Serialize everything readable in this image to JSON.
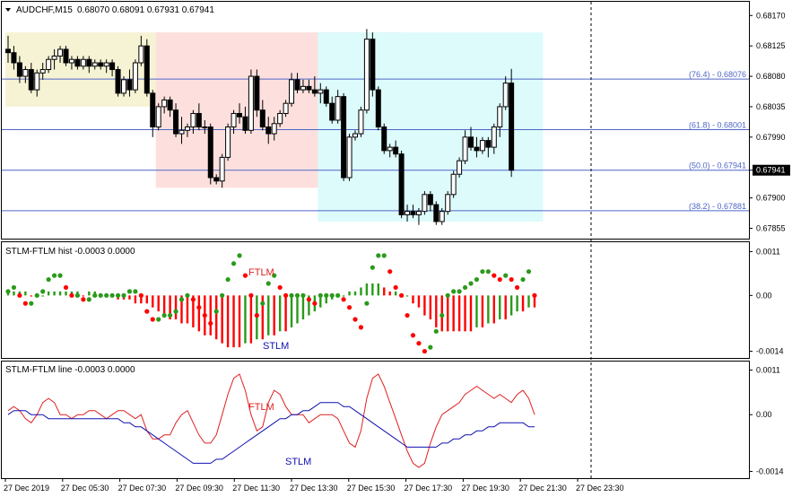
{
  "window": {
    "symbol_title": "AUDCHF,M15",
    "ohlc": "0.68070 0.68091 0.67931 0.67941",
    "colors": {
      "up": "#000000",
      "down": "#000000",
      "bg": "#ffffff",
      "grid_line": "#4f66c7"
    }
  },
  "chart_data": [
    {
      "type": "candlestick",
      "title": "AUDCHF,M15  0.68070 0.68091 0.67931 0.67941",
      "price_axis": {
        "ticks": [
          "0.68170",
          "0.68125",
          "0.68080",
          "0.68035",
          "0.67990",
          "0.67941",
          "0.67900",
          "0.67855"
        ],
        "range": [
          0.67845,
          0.68185
        ],
        "current": "0.67941"
      },
      "fib_levels": [
        {
          "label": "(76.4) - 0.68076",
          "value": 0.68076
        },
        {
          "label": "(61.8) - 0.68001",
          "value": 0.68001
        },
        {
          "label": "(50.0) - 0.67941",
          "value": 0.67941
        },
        {
          "label": "(38.2) - 0.67881",
          "value": 0.67881
        }
      ],
      "zones": [
        {
          "color": "#f6f3d5",
          "from_bar": 0,
          "to_bar": 30,
          "high": 0.68145,
          "low": 0.68035
        },
        {
          "color": "#fde0dd",
          "from_bar": 26,
          "to_bar": 54,
          "high": 0.68145,
          "low": 0.67915
        },
        {
          "color": "#dfe0dc",
          "from_bar": 54,
          "to_bar": 68,
          "high": 0.68145,
          "low": 0.67915
        },
        {
          "color": "#ddfbfb",
          "from_bar": 54,
          "to_bar": 92,
          "high": 0.68145,
          "low": 0.67865
        }
      ],
      "candles": [
        [
          0.6812,
          0.6814,
          0.681,
          0.68115
        ],
        [
          0.68115,
          0.68125,
          0.6809,
          0.681
        ],
        [
          0.681,
          0.6811,
          0.6807,
          0.6808
        ],
        [
          0.6808,
          0.68095,
          0.6807,
          0.6809
        ],
        [
          0.6809,
          0.681,
          0.68055,
          0.6806
        ],
        [
          0.6806,
          0.6809,
          0.6805,
          0.68085
        ],
        [
          0.68085,
          0.681,
          0.68075,
          0.6809
        ],
        [
          0.6809,
          0.6811,
          0.68085,
          0.68105
        ],
        [
          0.68105,
          0.6812,
          0.6809,
          0.6811
        ],
        [
          0.6811,
          0.68125,
          0.681,
          0.6812
        ],
        [
          0.6812,
          0.68125,
          0.68095,
          0.681
        ],
        [
          0.681,
          0.6811,
          0.6809,
          0.68105
        ],
        [
          0.68105,
          0.6811,
          0.6809,
          0.68095
        ],
        [
          0.68095,
          0.6811,
          0.6809,
          0.68105
        ],
        [
          0.68105,
          0.6811,
          0.68085,
          0.68095
        ],
        [
          0.68095,
          0.68105,
          0.6809,
          0.681
        ],
        [
          0.681,
          0.68105,
          0.6809,
          0.68095
        ],
        [
          0.68095,
          0.68105,
          0.68085,
          0.681
        ],
        [
          0.681,
          0.68105,
          0.6808,
          0.6809
        ],
        [
          0.6809,
          0.68095,
          0.6805,
          0.68055
        ],
        [
          0.68055,
          0.6808,
          0.6805,
          0.68075
        ],
        [
          0.68075,
          0.6809,
          0.6805,
          0.6806
        ],
        [
          0.6806,
          0.68105,
          0.68055,
          0.681
        ],
        [
          0.681,
          0.6814,
          0.68095,
          0.68125
        ],
        [
          0.68125,
          0.68135,
          0.6805,
          0.68055
        ],
        [
          0.68055,
          0.6806,
          0.6799,
          0.68005
        ],
        [
          0.68005,
          0.6804,
          0.68,
          0.68035
        ],
        [
          0.68035,
          0.6805,
          0.68025,
          0.68045
        ],
        [
          0.68045,
          0.6805,
          0.6802,
          0.6803
        ],
        [
          0.6803,
          0.6804,
          0.6799,
          0.67995
        ],
        [
          0.67995,
          0.6802,
          0.6798,
          0.68
        ],
        [
          0.68,
          0.6801,
          0.6799,
          0.68005
        ],
        [
          0.68005,
          0.6803,
          0.67995,
          0.68025
        ],
        [
          0.68025,
          0.6804,
          0.68,
          0.68005
        ],
        [
          0.68005,
          0.68015,
          0.67995,
          0.68005
        ],
        [
          0.68005,
          0.6801,
          0.6792,
          0.6793
        ],
        [
          0.6793,
          0.67935,
          0.6792,
          0.67925
        ],
        [
          0.67925,
          0.67965,
          0.67915,
          0.6796
        ],
        [
          0.6796,
          0.6801,
          0.67955,
          0.68005
        ],
        [
          0.68005,
          0.6803,
          0.67995,
          0.68025
        ],
        [
          0.68025,
          0.6804,
          0.6801,
          0.6802
        ],
        [
          0.6802,
          0.68035,
          0.67995,
          0.68
        ],
        [
          0.68,
          0.6809,
          0.67995,
          0.6808
        ],
        [
          0.6808,
          0.6809,
          0.6802,
          0.6803
        ],
        [
          0.6803,
          0.68045,
          0.68,
          0.68005
        ],
        [
          0.68005,
          0.6802,
          0.6798,
          0.67995
        ],
        [
          0.67995,
          0.6802,
          0.67985,
          0.6801
        ],
        [
          0.6801,
          0.6803,
          0.68005,
          0.68025
        ],
        [
          0.68025,
          0.68045,
          0.6802,
          0.6804
        ],
        [
          0.6804,
          0.68085,
          0.68035,
          0.68075
        ],
        [
          0.68075,
          0.68085,
          0.68055,
          0.6806
        ],
        [
          0.6806,
          0.68075,
          0.68055,
          0.68065
        ],
        [
          0.68065,
          0.68075,
          0.68055,
          0.6806
        ],
        [
          0.6806,
          0.6808,
          0.6805,
          0.68055
        ],
        [
          0.68055,
          0.6807,
          0.6804,
          0.6806
        ],
        [
          0.6806,
          0.68065,
          0.68035,
          0.6804
        ],
        [
          0.6804,
          0.6805,
          0.6801,
          0.68015
        ],
        [
          0.68015,
          0.6806,
          0.6801,
          0.6805
        ],
        [
          0.6805,
          0.68055,
          0.67925,
          0.6793
        ],
        [
          0.6793,
          0.67995,
          0.67925,
          0.6799
        ],
        [
          0.6799,
          0.68,
          0.67985,
          0.67995
        ],
        [
          0.67995,
          0.68035,
          0.6799,
          0.6803
        ],
        [
          0.6803,
          0.6815,
          0.68025,
          0.68135
        ],
        [
          0.68135,
          0.68145,
          0.6805,
          0.6806
        ],
        [
          0.6806,
          0.68065,
          0.68,
          0.68005
        ],
        [
          0.68005,
          0.6801,
          0.67965,
          0.6797
        ],
        [
          0.6797,
          0.6798,
          0.6796,
          0.67975
        ],
        [
          0.67975,
          0.67985,
          0.6796,
          0.67965
        ],
        [
          0.67965,
          0.6797,
          0.6787,
          0.67875
        ],
        [
          0.67875,
          0.6789,
          0.67865,
          0.6788
        ],
        [
          0.6788,
          0.6789,
          0.6787,
          0.67875
        ],
        [
          0.67875,
          0.67885,
          0.6786,
          0.6788
        ],
        [
          0.6788,
          0.6791,
          0.67875,
          0.67905
        ],
        [
          0.67905,
          0.6791,
          0.6788,
          0.6789
        ],
        [
          0.6789,
          0.67895,
          0.6786,
          0.67865
        ],
        [
          0.67865,
          0.67885,
          0.6786,
          0.6788
        ],
        [
          0.6788,
          0.6791,
          0.67875,
          0.67905
        ],
        [
          0.67905,
          0.6794,
          0.679,
          0.67935
        ],
        [
          0.67935,
          0.6796,
          0.6793,
          0.67955
        ],
        [
          0.67955,
          0.68,
          0.6795,
          0.6799
        ],
        [
          0.6799,
          0.68005,
          0.6797,
          0.67975
        ],
        [
          0.67975,
          0.6799,
          0.6796,
          0.6797
        ],
        [
          0.6797,
          0.6799,
          0.67965,
          0.67985
        ],
        [
          0.67985,
          0.6799,
          0.6796,
          0.67975
        ],
        [
          0.67975,
          0.6801,
          0.67965,
          0.68005
        ],
        [
          0.68005,
          0.6804,
          0.6799,
          0.68035
        ],
        [
          0.68035,
          0.6808,
          0.6803,
          0.6807
        ],
        [
          0.6807,
          0.68091,
          0.67931,
          0.67941
        ]
      ]
    },
    {
      "type": "bar",
      "title": "STLM-FTLM hist -0.0003 0.0000",
      "annotations": [
        "FTLM",
        "STLM"
      ],
      "y_ticks": [
        "0.0011",
        "0.00",
        "-0.0014"
      ],
      "ylim": [
        -0.0015,
        0.0012
      ],
      "bars": [
        0.0001,
        0.0001,
        0.0001,
        0.0001,
        0.0,
        0.0,
        0.0,
        0.0001,
        0.0001,
        0.0001,
        0.0001,
        0.0001,
        0.0001,
        0.0,
        0.0001,
        0.0001,
        0.0,
        0.0,
        0.0,
        -0.0001,
        -0.0001,
        -0.0001,
        -0.0002,
        -0.0002,
        -0.0002,
        -0.0003,
        -0.0004,
        -0.0005,
        -0.0006,
        -0.0006,
        -0.0007,
        -0.0007,
        -0.0008,
        -0.0009,
        -0.001,
        -0.001,
        -0.0011,
        -0.0012,
        -0.0013,
        -0.0013,
        -0.0013,
        -0.0012,
        -0.0012,
        -0.0011,
        -0.0011,
        -0.001,
        -0.001,
        -0.0009,
        -0.0009,
        -0.0008,
        -0.0007,
        -0.0006,
        -0.0005,
        -0.0004,
        -0.0003,
        -0.0002,
        -0.0001,
        0.0,
        0.0,
        0.0001,
        0.0001,
        0.0002,
        0.0003,
        0.0003,
        0.0003,
        0.0002,
        0.0001,
        0.0001,
        0.0,
        0.0,
        -0.0002,
        -0.0003,
        -0.0005,
        -0.0006,
        -0.0008,
        -0.0009,
        -0.0009,
        -0.0009,
        -0.0009,
        -0.0009,
        -0.0009,
        -0.0008,
        -0.0008,
        -0.0007,
        -0.0007,
        -0.0006,
        -0.0006,
        -0.0005,
        -0.0004,
        -0.0004,
        -0.0003,
        -0.0003
      ],
      "colors": {
        "up": "#2a9a1a",
        "down": "#ff0000"
      },
      "ftlm_points": [
        0.0001,
        0.0002,
        0.0,
        -0.0002,
        -0.0002,
        0.0,
        0.0001,
        0.0004,
        0.0005,
        0.0005,
        0.0002,
        0.0,
        0.0,
        -0.0001,
        -0.0001,
        0.0,
        0.0,
        0.0,
        0.0,
        0.0,
        0.0,
        0.0001,
        0.0001,
        0.0,
        -0.0004,
        -0.0006,
        -0.0006,
        -0.0005,
        -0.0005,
        -0.0004,
        -0.0001,
        0.0,
        -0.0001,
        -0.0003,
        -0.0005,
        -0.0007,
        -0.0004,
        0.0,
        0.0004,
        0.0008,
        0.001,
        0.0005,
        0.0,
        -0.0005,
        -0.0002,
        0.0003,
        0.0005,
        0.0002,
        0.0,
        0.0,
        0.0,
        0.0,
        -0.0001,
        -0.0002,
        0.0,
        0.0,
        0.0,
        0.0,
        -0.0001,
        -0.0003,
        -0.0006,
        -0.0008,
        -0.0002,
        0.0007,
        0.001,
        0.001,
        0.0006,
        0.0002,
        0.0,
        -0.0005,
        -0.001,
        -0.0012,
        -0.0014,
        -0.0013,
        -0.0009,
        -0.0005,
        0.0,
        0.0001,
        0.0001,
        0.0002,
        0.0003,
        0.0004,
        0.0006,
        0.0006,
        0.0005,
        0.0004,
        0.0005,
        0.0004,
        0.0002,
        0.0004,
        0.0006,
        0.0
      ]
    },
    {
      "type": "line",
      "title": "STLM-FTLM line -0.0003 0.0000",
      "annotations": [
        "FTLM",
        "STLM"
      ],
      "y_ticks": [
        "0.0011",
        "0.00",
        "-0.0014"
      ],
      "ylim": [
        -0.0015,
        0.0012
      ],
      "series": [
        {
          "name": "FTLM",
          "color": "#e02020",
          "values": [
            0.0001,
            0.0002,
            0.0001,
            -0.0001,
            -0.0002,
            0.0,
            0.0003,
            0.0004,
            0.0003,
            0.0,
            0.0,
            -0.0001,
            0.0,
            0.0,
            0.0001,
            0.0001,
            0.0,
            -0.0001,
            0.0,
            0.0001,
            0.0001,
            0.0,
            -0.0001,
            0.0,
            -0.0004,
            -0.0006,
            -0.0006,
            -0.0005,
            -0.0005,
            -0.0002,
            0.0,
            0.0001,
            -0.0002,
            -0.0005,
            -0.0007,
            -0.0007,
            -0.0005,
            0.0,
            0.0005,
            0.0009,
            0.001,
            0.0006,
            0.0,
            -0.0004,
            -0.0003,
            0.0003,
            0.0006,
            0.0005,
            0.0002,
            0.0,
            0.0,
            0.0,
            -0.0002,
            -0.0001,
            0.0,
            0.0,
            0.0,
            -0.0001,
            -0.0004,
            -0.0007,
            -0.0008,
            -0.0004,
            0.0004,
            0.0009,
            0.001,
            0.0007,
            0.0003,
            -0.0001,
            -0.0005,
            -0.0009,
            -0.0012,
            -0.0013,
            -0.0012,
            -0.0007,
            -0.0003,
            0.0,
            0.0001,
            0.0002,
            0.0003,
            0.0005,
            0.0006,
            0.0007,
            0.0006,
            0.0005,
            0.0004,
            0.0005,
            0.0004,
            0.0003,
            0.0005,
            0.0006,
            0.0004,
            0.0
          ]
        },
        {
          "name": "STLM",
          "color": "#1010b0",
          "values": [
            0.0,
            0.0001,
            0.0001,
            0.0001,
            0.0,
            0.0,
            0.0,
            -0.0001,
            -0.0001,
            -0.0001,
            -0.0001,
            -0.0001,
            -0.0001,
            -0.0001,
            -0.0001,
            -0.0001,
            -0.0001,
            -0.0001,
            -0.0001,
            -0.0001,
            -0.0002,
            -0.0002,
            -0.0003,
            -0.0003,
            -0.0004,
            -0.0005,
            -0.0006,
            -0.0007,
            -0.0008,
            -0.0009,
            -0.001,
            -0.0011,
            -0.0012,
            -0.0012,
            -0.0012,
            -0.0012,
            -0.0011,
            -0.0011,
            -0.001,
            -0.0009,
            -0.0008,
            -0.0007,
            -0.0006,
            -0.0005,
            -0.0004,
            -0.0003,
            -0.0002,
            -0.0001,
            -0.0001,
            0.0,
            0.0,
            0.0001,
            0.0001,
            0.0002,
            0.0003,
            0.0003,
            0.0003,
            0.0003,
            0.0002,
            0.0002,
            0.0001,
            0.0,
            -0.0001,
            -0.0002,
            -0.0003,
            -0.0004,
            -0.0005,
            -0.0006,
            -0.0007,
            -0.0008,
            -0.0008,
            -0.0008,
            -0.0008,
            -0.0008,
            -0.0008,
            -0.0007,
            -0.0007,
            -0.0006,
            -0.0006,
            -0.0005,
            -0.0005,
            -0.0004,
            -0.0004,
            -0.0003,
            -0.0003,
            -0.0002,
            -0.0002,
            -0.0002,
            -0.0002,
            -0.0002,
            -0.0003,
            -0.0003
          ]
        }
      ]
    }
  ],
  "time_axis": {
    "labels": [
      "27 Dec 2019",
      "27 Dec 05:30",
      "27 Dec 07:30",
      "27 Dec 09:30",
      "27 Dec 11:30",
      "27 Dec 13:30",
      "27 Dec 15:30",
      "27 Dec 17:30",
      "27 Dec 19:30",
      "27 Dec 21:30",
      "27 Dec 23:30"
    ]
  }
}
